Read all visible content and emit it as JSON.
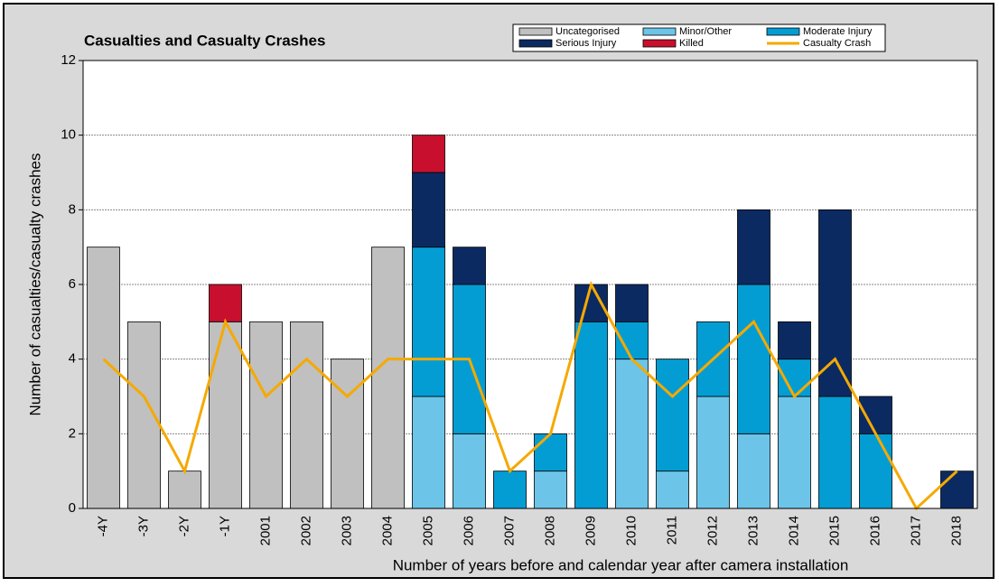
{
  "chart_data": {
    "type": "bar",
    "stacked": true,
    "title": "Casualties and Casualty Crashes",
    "x_label": "Number of years before and calendar year after camera installation",
    "y_label": "Number of casualties/casualty crashes",
    "categories": [
      "-4Y",
      "-3Y",
      "-2Y",
      "-1Y",
      "2001",
      "2002",
      "2003",
      "2004",
      "2005",
      "2006",
      "2007",
      "2008",
      "2009",
      "2010",
      "2011",
      "2012",
      "2013",
      "2014",
      "2015",
      "2016",
      "2017",
      "2018"
    ],
    "series": [
      {
        "name": "Uncategorised",
        "type": "bar",
        "color": "#c0c0c0",
        "values": [
          7,
          5,
          1,
          5,
          5,
          5,
          4,
          7,
          0,
          0,
          0,
          0,
          0,
          0,
          0,
          0,
          0,
          0,
          0,
          0,
          0,
          0
        ]
      },
      {
        "name": "Minor/Other",
        "type": "bar",
        "color": "#6cc5e9",
        "values": [
          0,
          0,
          0,
          0,
          0,
          0,
          0,
          0,
          3,
          2,
          0,
          1,
          0,
          4,
          1,
          3,
          2,
          3,
          0,
          0,
          0,
          0
        ]
      },
      {
        "name": "Moderate Injury",
        "type": "bar",
        "color": "#049dd3",
        "values": [
          0,
          0,
          0,
          0,
          0,
          0,
          0,
          0,
          4,
          4,
          1,
          1,
          5,
          1,
          3,
          2,
          4,
          1,
          3,
          2,
          0,
          0
        ]
      },
      {
        "name": "Serious Injury",
        "type": "bar",
        "color": "#0c2a62",
        "values": [
          0,
          0,
          0,
          0,
          0,
          0,
          0,
          0,
          2,
          1,
          0,
          0,
          1,
          1,
          0,
          0,
          2,
          1,
          5,
          1,
          0,
          1
        ]
      },
      {
        "name": "Killed",
        "type": "bar",
        "color": "#c8102e",
        "values": [
          0,
          0,
          0,
          1,
          0,
          0,
          0,
          0,
          1,
          0,
          0,
          0,
          0,
          0,
          0,
          0,
          0,
          0,
          0,
          0,
          0,
          0
        ]
      },
      {
        "name": "Casualty Crash",
        "type": "line",
        "color": "#f5a900",
        "values": [
          4,
          3,
          1,
          5,
          3,
          4,
          3,
          4,
          4,
          4,
          1,
          2,
          6,
          4,
          3,
          4,
          5,
          3,
          4,
          2,
          0,
          1
        ]
      }
    ],
    "ylim": [
      0,
      12
    ],
    "yticks": [
      0,
      2,
      4,
      6,
      8,
      10,
      12
    ],
    "grid": true
  }
}
